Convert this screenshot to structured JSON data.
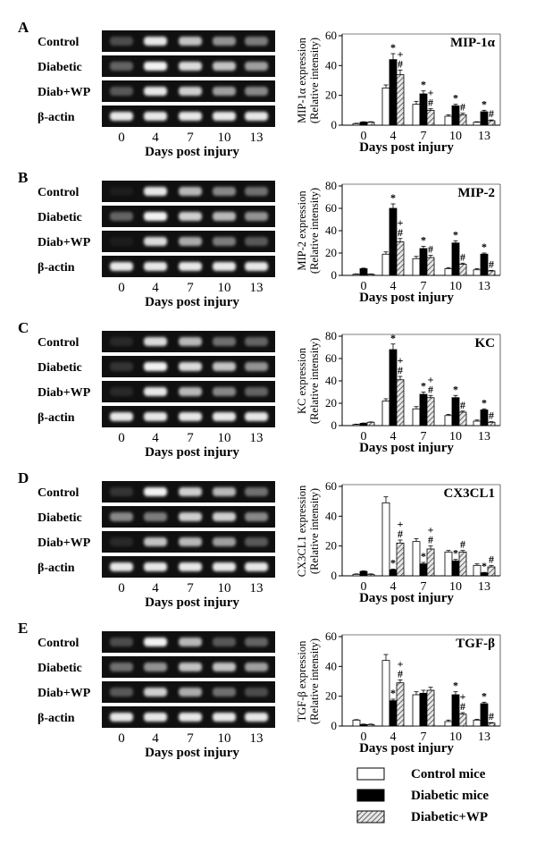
{
  "colors": {
    "control": "#ffffff",
    "diabetic": "#000000",
    "diabetic_wp": "#d8d8d8",
    "gel_background": "#101010",
    "band": "#ffffff"
  },
  "legend": {
    "items": [
      {
        "label": "Control mice",
        "pattern": "open"
      },
      {
        "label": "Diabetic mice",
        "pattern": "solid"
      },
      {
        "label": "Diabetic+WP",
        "pattern": "hatched"
      }
    ]
  },
  "panels": [
    {
      "letter": "A",
      "gel": {
        "rows": [
          {
            "label": "Control",
            "bands": [
              0.25,
              0.9,
              0.75,
              0.55,
              0.45
            ]
          },
          {
            "label": "Diabetic",
            "bands": [
              0.35,
              0.95,
              0.85,
              0.75,
              0.6
            ]
          },
          {
            "label": "Diab+WP",
            "bands": [
              0.3,
              0.9,
              0.8,
              0.6,
              0.5
            ]
          },
          {
            "label": "β-actin",
            "bands": [
              0.9,
              0.9,
              0.9,
              0.9,
              0.9
            ]
          }
        ],
        "lanes": [
          "0",
          "4",
          "7",
          "10",
          "13"
        ],
        "xlabel": "Days post injury"
      }
    },
    {
      "letter": "B",
      "gel": {
        "rows": [
          {
            "label": "Control",
            "bands": [
              0.05,
              0.9,
              0.7,
              0.5,
              0.4
            ]
          },
          {
            "label": "Diabetic",
            "bands": [
              0.35,
              0.95,
              0.8,
              0.7,
              0.55
            ]
          },
          {
            "label": "Diab+WP",
            "bands": [
              0.05,
              0.85,
              0.65,
              0.45,
              0.3
            ]
          },
          {
            "label": "β-actin",
            "bands": [
              0.9,
              0.9,
              0.9,
              0.9,
              0.9
            ]
          }
        ],
        "lanes": [
          "0",
          "4",
          "7",
          "10",
          "13"
        ],
        "xlabel": "Days post injury"
      }
    },
    {
      "letter": "C",
      "gel": {
        "rows": [
          {
            "label": "Control",
            "bands": [
              0.1,
              0.85,
              0.7,
              0.4,
              0.35
            ]
          },
          {
            "label": "Diabetic",
            "bands": [
              0.15,
              0.95,
              0.85,
              0.75,
              0.55
            ]
          },
          {
            "label": "Diab+WP",
            "bands": [
              0.1,
              0.9,
              0.7,
              0.5,
              0.35
            ]
          },
          {
            "label": "β-actin",
            "bands": [
              0.9,
              0.9,
              0.9,
              0.9,
              0.9
            ]
          }
        ],
        "lanes": [
          "0",
          "4",
          "7",
          "10",
          "13"
        ],
        "xlabel": "Days post injury"
      }
    },
    {
      "letter": "D",
      "gel": {
        "rows": [
          {
            "label": "Control",
            "bands": [
              0.15,
              0.95,
              0.8,
              0.7,
              0.4
            ]
          },
          {
            "label": "Diabetic",
            "bands": [
              0.5,
              0.45,
              0.8,
              0.8,
              0.5
            ]
          },
          {
            "label": "Diab+WP",
            "bands": [
              0.1,
              0.75,
              0.7,
              0.6,
              0.3
            ]
          },
          {
            "label": "β-actin",
            "bands": [
              0.9,
              0.9,
              0.9,
              0.9,
              0.9
            ]
          }
        ],
        "lanes": [
          "0",
          "4",
          "7",
          "10",
          "13"
        ],
        "xlabel": "Days post injury"
      }
    },
    {
      "letter": "E",
      "gel": {
        "rows": [
          {
            "label": "Control",
            "bands": [
              0.25,
              0.95,
              0.7,
              0.3,
              0.35
            ]
          },
          {
            "label": "Diabetic",
            "bands": [
              0.4,
              0.55,
              0.75,
              0.75,
              0.6
            ]
          },
          {
            "label": "Diab+WP",
            "bands": [
              0.3,
              0.8,
              0.65,
              0.4,
              0.25
            ]
          },
          {
            "label": "β-actin",
            "bands": [
              0.9,
              0.9,
              0.9,
              0.9,
              0.9
            ]
          }
        ],
        "lanes": [
          "0",
          "4",
          "7",
          "10",
          "13"
        ],
        "xlabel": "Days post injury"
      }
    }
  ],
  "chart_data": [
    {
      "type": "bar",
      "title": "MIP-1α",
      "ylabel": [
        "MIP-1α expression",
        "(Relative intensity)"
      ],
      "xlabel": "Days post injury",
      "categories": [
        "0",
        "4",
        "7",
        "10",
        "13"
      ],
      "ylim": [
        0,
        60
      ],
      "yticks": [
        0,
        20,
        40,
        60
      ],
      "series": [
        {
          "values": [
            1,
            25,
            14,
            6,
            2
          ],
          "errors": [
            0.3,
            2,
            2,
            1,
            0.3
          ]
        },
        {
          "values": [
            2,
            44,
            21,
            13,
            9
          ],
          "errors": [
            0.3,
            4,
            2,
            1,
            1
          ]
        },
        {
          "values": [
            2,
            34,
            10,
            7,
            3
          ],
          "errors": [
            0.3,
            3,
            1,
            1,
            0.5
          ]
        }
      ],
      "annotations": [
        {
          "text": "*",
          "category": 1,
          "series": 1
        },
        {
          "text": "+",
          "category": 1,
          "series": 2,
          "row": 0
        },
        {
          "text": "#",
          "category": 1,
          "series": 2,
          "row": 1
        },
        {
          "text": "*",
          "category": 2,
          "series": 1
        },
        {
          "text": "+",
          "category": 2,
          "series": 2,
          "row": 0
        },
        {
          "text": "#",
          "category": 2,
          "series": 2,
          "row": 1
        },
        {
          "text": "*",
          "category": 3,
          "series": 1
        },
        {
          "text": "#",
          "category": 3,
          "series": 2,
          "row": 1
        },
        {
          "text": "*",
          "category": 4,
          "series": 1
        },
        {
          "text": "#",
          "category": 4,
          "series": 2,
          "row": 1
        }
      ]
    },
    {
      "type": "bar",
      "title": "MIP-2",
      "ylabel": [
        "MIP-2 expression",
        "(Relative intensity)"
      ],
      "xlabel": "Days post injury",
      "categories": [
        "0",
        "4",
        "7",
        "10",
        "13"
      ],
      "ylim": [
        0,
        80
      ],
      "yticks": [
        0,
        20,
        40,
        60,
        80
      ],
      "series": [
        {
          "values": [
            1,
            19,
            15,
            6,
            5
          ],
          "errors": [
            0.3,
            2,
            2,
            1,
            1
          ]
        },
        {
          "values": [
            6,
            60,
            24,
            29,
            19
          ],
          "errors": [
            0.5,
            4,
            2,
            2,
            1
          ]
        },
        {
          "values": [
            1,
            30,
            16,
            10,
            4
          ],
          "errors": [
            0.3,
            3,
            2,
            1,
            0.5
          ]
        }
      ],
      "annotations": [
        {
          "text": "*",
          "category": 1,
          "series": 1
        },
        {
          "text": "+",
          "category": 1,
          "series": 2,
          "row": 0
        },
        {
          "text": "#",
          "category": 1,
          "series": 2,
          "row": 1
        },
        {
          "text": "*",
          "category": 2,
          "series": 1
        },
        {
          "text": "#",
          "category": 2,
          "series": 2,
          "row": 1
        },
        {
          "text": "*",
          "category": 3,
          "series": 1
        },
        {
          "text": "#",
          "category": 3,
          "series": 2,
          "row": 1
        },
        {
          "text": "*",
          "category": 4,
          "series": 1
        },
        {
          "text": "#",
          "category": 4,
          "series": 2,
          "row": 1
        }
      ]
    },
    {
      "type": "bar",
      "title": "KC",
      "ylabel": [
        "KC expression",
        "(Relative intensity)"
      ],
      "xlabel": "Days post injury",
      "categories": [
        "0",
        "4",
        "7",
        "10",
        "13"
      ],
      "ylim": [
        0,
        80
      ],
      "yticks": [
        0,
        20,
        40,
        60,
        80
      ],
      "series": [
        {
          "values": [
            1,
            22,
            15,
            9,
            4
          ],
          "errors": [
            0.3,
            2,
            2,
            1,
            1
          ]
        },
        {
          "values": [
            2,
            68,
            28,
            25,
            14
          ],
          "errors": [
            0.3,
            5,
            2,
            2,
            1
          ]
        },
        {
          "values": [
            3,
            41,
            25,
            12,
            3
          ],
          "errors": [
            0.3,
            3,
            2,
            1,
            0.5
          ]
        }
      ],
      "annotations": [
        {
          "text": "*",
          "category": 1,
          "series": 1
        },
        {
          "text": "+",
          "category": 1,
          "series": 2,
          "row": 0
        },
        {
          "text": "#",
          "category": 1,
          "series": 2,
          "row": 1
        },
        {
          "text": "*",
          "category": 2,
          "series": 1
        },
        {
          "text": "+",
          "category": 2,
          "series": 2,
          "row": 0
        },
        {
          "text": "#",
          "category": 2,
          "series": 2,
          "row": 1
        },
        {
          "text": "*",
          "category": 3,
          "series": 1
        },
        {
          "text": "#",
          "category": 3,
          "series": 2,
          "row": 1
        },
        {
          "text": "*",
          "category": 4,
          "series": 1
        },
        {
          "text": "#",
          "category": 4,
          "series": 2,
          "row": 1
        }
      ]
    },
    {
      "type": "bar",
      "title": "CX3CL1",
      "ylabel": [
        "CX3CL1 expression",
        "(Relative intensity)"
      ],
      "xlabel": "Days post injury",
      "categories": [
        "0",
        "4",
        "7",
        "10",
        "13"
      ],
      "ylim": [
        0,
        60
      ],
      "yticks": [
        0,
        20,
        40,
        60
      ],
      "series": [
        {
          "values": [
            1,
            49,
            23,
            16,
            7
          ],
          "errors": [
            0.3,
            4,
            2,
            1,
            1
          ]
        },
        {
          "values": [
            3,
            4,
            8,
            10,
            2
          ],
          "errors": [
            0.3,
            0.5,
            1,
            1,
            0.3
          ]
        },
        {
          "values": [
            1,
            22,
            18,
            16,
            6
          ],
          "errors": [
            0.3,
            2,
            2,
            1,
            1
          ]
        }
      ],
      "annotations": [
        {
          "text": "*",
          "category": 1,
          "series": 1
        },
        {
          "text": "+",
          "category": 1,
          "series": 2,
          "row": 0
        },
        {
          "text": "#",
          "category": 1,
          "series": 2,
          "row": 1
        },
        {
          "text": "*",
          "category": 2,
          "series": 1
        },
        {
          "text": "+",
          "category": 2,
          "series": 2,
          "row": 0
        },
        {
          "text": "#",
          "category": 2,
          "series": 2,
          "row": 1
        },
        {
          "text": "*",
          "category": 3,
          "series": 1
        },
        {
          "text": "#",
          "category": 3,
          "series": 2,
          "row": 1
        },
        {
          "text": "*",
          "category": 4,
          "series": 1
        },
        {
          "text": "#",
          "category": 4,
          "series": 2,
          "row": 1
        }
      ]
    },
    {
      "type": "bar",
      "title": "TGF-β",
      "ylabel": [
        "TGF-β expression",
        "(Relative intensity)"
      ],
      "xlabel": "Days post injury",
      "categories": [
        "0",
        "4",
        "7",
        "10",
        "13"
      ],
      "ylim": [
        0,
        60
      ],
      "yticks": [
        0,
        20,
        40,
        60
      ],
      "series": [
        {
          "values": [
            4,
            44,
            21,
            3,
            4
          ],
          "errors": [
            0.3,
            4,
            2,
            1,
            0.5
          ]
        },
        {
          "values": [
            1,
            17,
            22,
            21,
            15
          ],
          "errors": [
            0.3,
            1,
            2,
            2,
            1
          ]
        },
        {
          "values": [
            1,
            29,
            24,
            8,
            2
          ],
          "errors": [
            0.3,
            2,
            2,
            1,
            0.3
          ]
        }
      ],
      "annotations": [
        {
          "text": "*",
          "category": 1,
          "series": 1
        },
        {
          "text": "+",
          "category": 1,
          "series": 2,
          "row": 0
        },
        {
          "text": "#",
          "category": 1,
          "series": 2,
          "row": 1
        },
        {
          "text": "*",
          "category": 3,
          "series": 1
        },
        {
          "text": "+",
          "category": 3,
          "series": 2,
          "row": 0
        },
        {
          "text": "#",
          "category": 3,
          "series": 2,
          "row": 1
        },
        {
          "text": "*",
          "category": 4,
          "series": 1
        },
        {
          "text": "#",
          "category": 4,
          "series": 2,
          "row": 1
        }
      ]
    }
  ]
}
